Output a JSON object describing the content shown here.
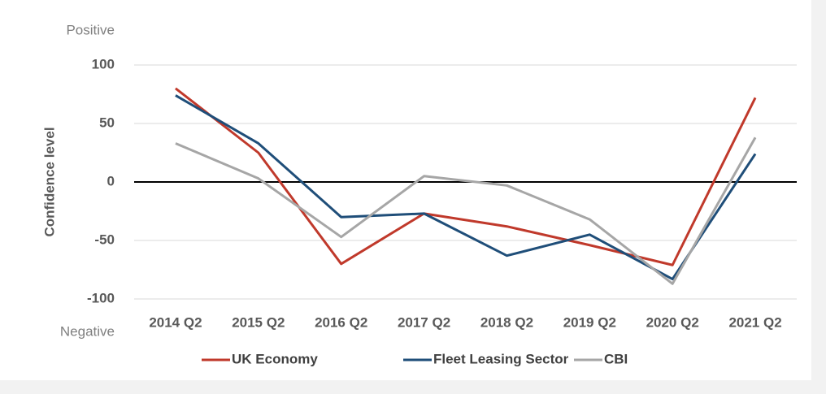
{
  "chart_data": {
    "type": "line",
    "ylabel": "Confidence level",
    "annotations": [
      "Positive",
      "Negative"
    ],
    "categories": [
      "2014 Q2",
      "2015 Q2",
      "2016 Q2",
      "2017 Q2",
      "2018 Q2",
      "2019 Q2",
      "2020 Q2",
      "2021 Q2"
    ],
    "series": [
      {
        "name": "UK Economy",
        "color": "#c0392b",
        "values": [
          80,
          25,
          -70,
          -27,
          -38,
          -54,
          -71,
          72
        ]
      },
      {
        "name": "Fleet Leasing Sector",
        "color": "#1f4e79",
        "values": [
          74,
          33,
          -30,
          -27,
          -63,
          -45,
          -83,
          24
        ]
      },
      {
        "name": "CBI",
        "color": "#a6a6a6",
        "values": [
          33,
          3,
          -47,
          5,
          -3,
          -32,
          -87,
          38
        ]
      }
    ],
    "ylim": [
      -100,
      100
    ],
    "yticks": [
      -100,
      -50,
      0,
      50,
      100
    ],
    "grid": true,
    "legend": "bottom"
  }
}
